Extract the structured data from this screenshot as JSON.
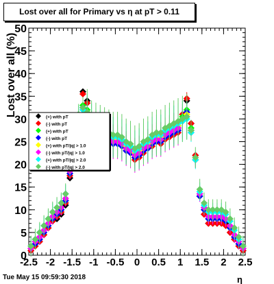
{
  "title": "Lost over all for Primary vs   η at pT > 0.11",
  "timestamp": "Tue May 15 09:59:30 2018",
  "chart_data": {
    "type": "scatter",
    "xlabel": "η",
    "ylabel": "Lost over all (%)",
    "xlim": [
      -2.5,
      2.5
    ],
    "ylim": [
      0,
      50
    ],
    "xticks": [
      -2.5,
      -2,
      -1.5,
      -1,
      -0.5,
      0,
      0.5,
      1,
      1.5,
      2,
      2.5
    ],
    "yticks": [
      0,
      5,
      10,
      15,
      20,
      25,
      30,
      35,
      40,
      45,
      50
    ],
    "grid": false,
    "legend_placement": "middle-left",
    "x": [
      -2.45,
      -2.35,
      -2.25,
      -2.15,
      -2.05,
      -1.95,
      -1.85,
      -1.75,
      -1.65,
      -1.55,
      -1.45,
      -1.35,
      -1.25,
      -1.15,
      -1.05,
      -0.95,
      -0.85,
      -0.75,
      -0.65,
      -0.55,
      -0.45,
      -0.35,
      -0.25,
      -0.15,
      -0.05,
      0.05,
      0.15,
      0.25,
      0.35,
      0.45,
      0.55,
      0.65,
      0.75,
      0.85,
      0.95,
      1.05,
      1.15,
      1.25,
      1.35,
      1.45,
      1.55,
      1.65,
      1.75,
      1.85,
      1.95,
      2.05,
      2.15,
      2.25,
      2.35,
      2.45
    ],
    "series": [
      {
        "name": "(+) with pT",
        "color": "#000000",
        "values": [
          1,
          2,
          3,
          4.5,
          6,
          7.5,
          8,
          9,
          11,
          17,
          24,
          29,
          36,
          34,
          30,
          29,
          27,
          27,
          26,
          25,
          26,
          25,
          24,
          23,
          21.5,
          22,
          23,
          24,
          25,
          26,
          25,
          26,
          27,
          27,
          28,
          31,
          34,
          29,
          22,
          13,
          9,
          7,
          7,
          7,
          7,
          7,
          5,
          3.5,
          2,
          1
        ]
      },
      {
        "name": "(-) with pT",
        "color": "#ff0000",
        "values": [
          1,
          2,
          3,
          4.5,
          6,
          7.5,
          8.5,
          9.5,
          11.5,
          17.5,
          24,
          29.5,
          35.5,
          33.5,
          29.5,
          28,
          26.5,
          26,
          25,
          24.5,
          25,
          24,
          23,
          22.5,
          21,
          21.5,
          22.5,
          23.5,
          24,
          25,
          24.5,
          25.5,
          26,
          26.5,
          27,
          31,
          34.5,
          29,
          22,
          13,
          9,
          7,
          7,
          7,
          7,
          6.5,
          5,
          3.5,
          2,
          1
        ]
      },
      {
        "name": "(+) with pT",
        "color": "#00ff00",
        "values": [
          1.5,
          2.5,
          3.5,
          5,
          6.5,
          8,
          9,
          10,
          12,
          18,
          25,
          30,
          33,
          32,
          29,
          28,
          27.5,
          27,
          26,
          25.5,
          26,
          25,
          24.5,
          24,
          22.5,
          23,
          24,
          25,
          25.5,
          26.5,
          26,
          27,
          27.5,
          28,
          28.5,
          30.5,
          32,
          28,
          21,
          13,
          10,
          8,
          8,
          8,
          8,
          7.5,
          6,
          4,
          2.5,
          1.5
        ]
      },
      {
        "name": "(-) with pT",
        "color": "#0000ff",
        "values": [
          1.5,
          2.5,
          3.5,
          5,
          6.5,
          8,
          9,
          10,
          12,
          18,
          25,
          30,
          32.5,
          31,
          28,
          27,
          26,
          25.5,
          25,
          24.5,
          24.5,
          24,
          23,
          22.5,
          21.5,
          22,
          23,
          23.5,
          24.5,
          25,
          25,
          26,
          26.5,
          27,
          27.5,
          30,
          31.5,
          27.5,
          21,
          13,
          10,
          8,
          8,
          8,
          8,
          7.5,
          6,
          4,
          2.5,
          1.5
        ]
      },
      {
        "name": "(+) with pT/|q| > 1.0",
        "color": "#ffff00",
        "values": [
          1.5,
          3,
          4,
          5.5,
          7,
          8.5,
          9.5,
          10.5,
          12.5,
          18.5,
          25,
          30,
          32,
          31.5,
          28.5,
          28,
          27,
          26.5,
          26,
          25.5,
          25.5,
          25,
          24,
          23.5,
          22.5,
          23,
          24,
          24.5,
          25.5,
          26,
          26,
          27,
          27.5,
          28,
          28.5,
          30,
          31,
          27.5,
          21,
          13.5,
          10.5,
          8.5,
          8.5,
          8.5,
          8.5,
          8,
          6.5,
          4.5,
          3,
          1.5
        ]
      },
      {
        "name": "(-) with pT/|q| > 1.0",
        "color": "#ff00ff",
        "values": [
          1.5,
          3,
          4,
          5.5,
          7,
          8.5,
          9.5,
          10.5,
          12.5,
          18.5,
          25,
          30,
          32,
          31,
          28,
          27.5,
          26.5,
          26,
          25.5,
          25,
          25,
          24.5,
          23.5,
          23,
          22,
          22.5,
          23.5,
          24,
          25,
          25.5,
          25.5,
          26.5,
          27,
          27.5,
          28,
          29.5,
          30.5,
          27,
          21,
          13.5,
          10.5,
          8.5,
          8.5,
          8.5,
          8.5,
          8,
          6.5,
          4.5,
          3,
          1.5
        ]
      },
      {
        "name": "(+) with pT/|q| > 2.0",
        "color": "#00ffff",
        "values": [
          2,
          3.5,
          5,
          6.5,
          8,
          9.5,
          10.5,
          11.5,
          13.5,
          19.5,
          26,
          31,
          32,
          31,
          29,
          28,
          27.5,
          27,
          26.5,
          26,
          26,
          25.5,
          24.5,
          24,
          23,
          23.5,
          24.5,
          25,
          26,
          26.5,
          26.5,
          27.5,
          28,
          28.5,
          29,
          29.5,
          30,
          27,
          21,
          14,
          11,
          9.5,
          9.5,
          9.5,
          9.5,
          9,
          7.5,
          5.5,
          3.5,
          2
        ]
      },
      {
        "name": "(-) with pT/|q| > 2.0",
        "color": "#66cc66",
        "values": [
          2,
          3.5,
          5,
          6.5,
          8,
          9.5,
          10.5,
          11.5,
          13.5,
          19.5,
          26,
          31,
          32.5,
          31.5,
          29,
          28.5,
          28,
          27.5,
          27,
          26.5,
          26.5,
          26,
          25,
          24.5,
          23.5,
          24,
          25,
          25.5,
          26.5,
          27,
          27,
          28,
          28.5,
          29,
          29.5,
          30,
          30.5,
          27.5,
          21.5,
          14.5,
          11.5,
          10,
          10,
          10,
          10,
          9.5,
          8,
          6,
          4,
          2
        ]
      }
    ]
  }
}
